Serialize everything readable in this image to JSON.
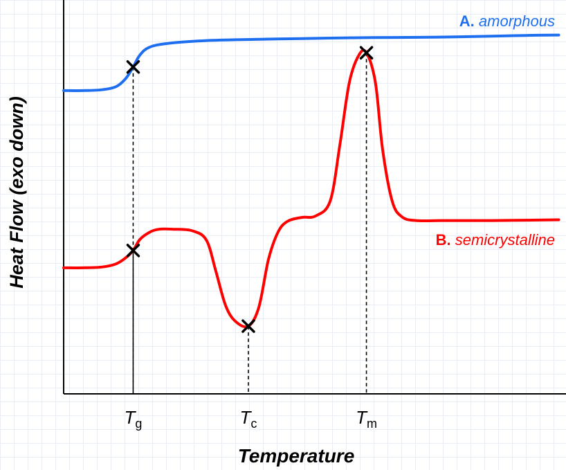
{
  "chart_data": {
    "type": "line",
    "title": "",
    "xlabel": "Temperature",
    "ylabel": "Heat Flow (exo down)",
    "grid": true,
    "xticks": [
      {
        "base": "T",
        "sub": "g",
        "x": 0.146
      },
      {
        "base": "T",
        "sub": "c",
        "x": 0.388
      },
      {
        "base": "T",
        "sub": "m",
        "x": 0.636
      }
    ],
    "xlim": [
      0,
      1
    ],
    "ylim": [
      0,
      1
    ],
    "series": [
      {
        "name": "amorphous",
        "prefix": "A.",
        "color": "#1e6ff0",
        "x": [
          0.0,
          0.04,
          0.08,
          0.11,
          0.13,
          0.146,
          0.16,
          0.18,
          0.22,
          0.3,
          0.4,
          0.5,
          0.6,
          0.7,
          0.8,
          0.9,
          0.97,
          1.04
        ],
        "y": [
          0.77,
          0.77,
          0.772,
          0.78,
          0.8,
          0.83,
          0.86,
          0.88,
          0.89,
          0.897,
          0.9,
          0.902,
          0.904,
          0.905,
          0.906,
          0.908,
          0.91,
          0.911
        ]
      },
      {
        "name": "semicrystalline",
        "prefix": "B.",
        "color": "#ff0000",
        "x": [
          0.0,
          0.04,
          0.08,
          0.11,
          0.13,
          0.146,
          0.16,
          0.18,
          0.2,
          0.23,
          0.27,
          0.3,
          0.32,
          0.34,
          0.36,
          0.388,
          0.41,
          0.43,
          0.45,
          0.47,
          0.5,
          0.53,
          0.56,
          0.58,
          0.6,
          0.62,
          0.636,
          0.655,
          0.67,
          0.69,
          0.71,
          0.74,
          0.8,
          0.9,
          0.97,
          1.04
        ],
        "y": [
          0.32,
          0.32,
          0.322,
          0.33,
          0.345,
          0.364,
          0.392,
          0.41,
          0.418,
          0.418,
          0.414,
          0.39,
          0.31,
          0.225,
          0.185,
          0.172,
          0.22,
          0.34,
          0.41,
          0.438,
          0.448,
          0.452,
          0.49,
          0.63,
          0.79,
          0.86,
          0.866,
          0.79,
          0.62,
          0.49,
          0.45,
          0.44,
          0.44,
          0.44,
          0.441,
          0.442
        ]
      }
    ],
    "markers": [
      {
        "series": "amorphous",
        "x": 0.146,
        "y": 0.83
      },
      {
        "series": "semicrystalline",
        "x": 0.146,
        "y": 0.364
      },
      {
        "series": "semicrystalline",
        "x": 0.388,
        "y": 0.172
      },
      {
        "series": "semicrystalline",
        "x": 0.636,
        "y": 0.866
      }
    ]
  }
}
